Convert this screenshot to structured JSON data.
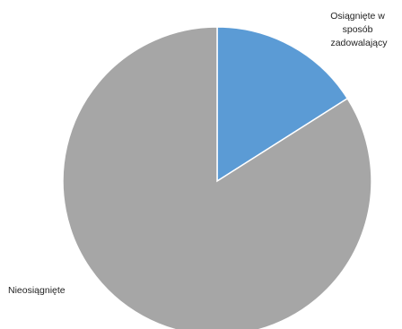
{
  "chart_data": {
    "type": "pie",
    "title": "",
    "start_angle_deg": 0,
    "direction": "clockwise",
    "slices": [
      {
        "label_lines": [
          "Osiągnięte w",
          "sposób",
          "zadowalający"
        ],
        "value": 16,
        "color": "#5b9bd5"
      },
      {
        "label_lines": [
          "Nieosiągnięte"
        ],
        "value": 84,
        "color": "#a6a6a6"
      }
    ],
    "slice_border_color": "#ffffff",
    "legend": "none"
  }
}
